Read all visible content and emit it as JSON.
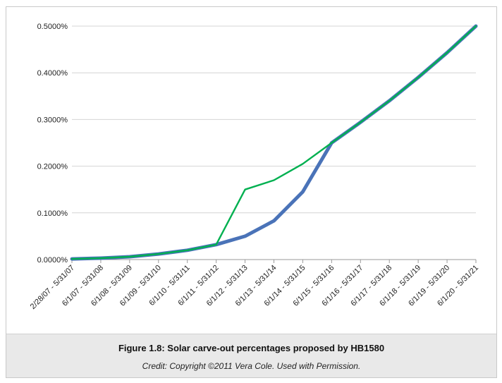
{
  "chart_data": {
    "type": "line",
    "title": "Figure 1.8: Solar carve-out percentages proposed by HB1580",
    "xlabel": "",
    "ylabel": "",
    "ylim": [
      0,
      0.5
    ],
    "y_ticks": [
      "0.0000%",
      "0.1000%",
      "0.2000%",
      "0.3000%",
      "0.4000%",
      "0.5000%"
    ],
    "y_tick_values": [
      0,
      0.1,
      0.2,
      0.3,
      0.4,
      0.5
    ],
    "grid": true,
    "categories": [
      "2/28/07 - 5/31/07",
      "6/1/07 - 5/31/08",
      "6/1/08 - 5/31/09",
      "6/1/09 - 5/31/10",
      "6/1/10 - 5/31/11",
      "6/1/11 - 5/31/12",
      "6/1/12 - 5/31/13",
      "6/1/13 - 5/31/14",
      "6/1/14 - 5/31/15",
      "6/1/15 - 5/31/16",
      "6/1/16 - 5/31/17",
      "6/1/17 - 5/31/18",
      "6/1/18 - 5/31/19",
      "6/1/19 - 5/31/20",
      "6/1/20 - 5/31/21"
    ],
    "series": [
      {
        "name": "Series 1 (blue)",
        "color": "#4a73b8",
        "values": [
          0.0013,
          0.003,
          0.006,
          0.012,
          0.02,
          0.032,
          0.05,
          0.083,
          0.145,
          0.25,
          0.294,
          0.34,
          0.39,
          0.443,
          0.5
        ]
      },
      {
        "name": "Series 2 (green)",
        "color": "#00b050",
        "values": [
          0.0013,
          0.003,
          0.006,
          0.012,
          0.02,
          0.032,
          0.15,
          0.17,
          0.205,
          0.25,
          0.294,
          0.34,
          0.39,
          0.443,
          0.5
        ]
      }
    ]
  },
  "caption": {
    "title": "Figure 1.8: Solar carve-out percentages proposed by HB1580",
    "credit": "Credit: Copyright ©2011 Vera Cole. Used with Permission."
  }
}
